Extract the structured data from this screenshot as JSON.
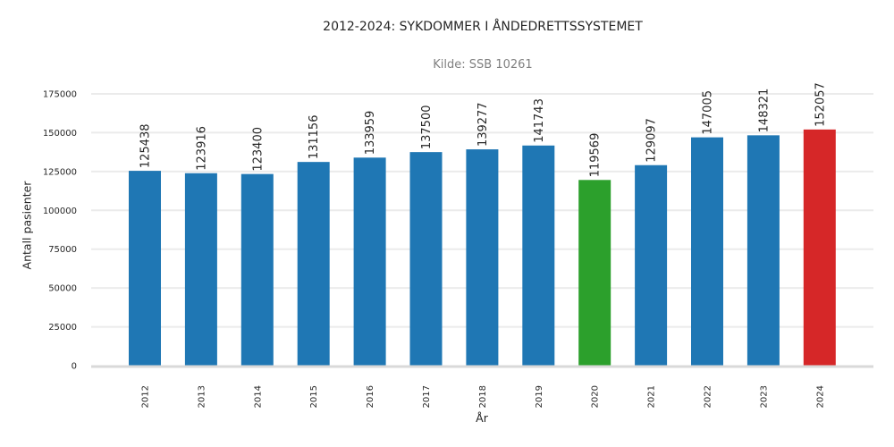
{
  "chart_data": {
    "type": "bar",
    "title": "2012-2024: SYKDOMMER I ÅNDEDRETTSSYSTEMET",
    "subtitle": "Kilde: SSB 10261",
    "xlabel": "År",
    "ylabel": "Antall pasienter",
    "categories": [
      "2012",
      "2013",
      "2014",
      "2015",
      "2016",
      "2017",
      "2018",
      "2019",
      "2020",
      "2021",
      "2022",
      "2023",
      "2024"
    ],
    "values": [
      125438,
      123916,
      123400,
      131156,
      133959,
      137500,
      139277,
      141743,
      119569,
      129097,
      147005,
      148321,
      152057
    ],
    "bar_colors": [
      "#1f77b4",
      "#1f77b4",
      "#1f77b4",
      "#1f77b4",
      "#1f77b4",
      "#1f77b4",
      "#1f77b4",
      "#1f77b4",
      "#2ca02c",
      "#1f77b4",
      "#1f77b4",
      "#1f77b4",
      "#d62728"
    ],
    "yticks": [
      0,
      25000,
      50000,
      75000,
      100000,
      125000,
      150000,
      175000
    ],
    "ylim": [
      0,
      175000
    ],
    "grid": true,
    "legend": null,
    "data_labels": true
  },
  "colors": {
    "default_bar": "#1f77b4",
    "highlight_2020": "#2ca02c",
    "highlight_2024": "#d62728",
    "grid": "#ebebeb",
    "axis": "#d9d9d9"
  }
}
